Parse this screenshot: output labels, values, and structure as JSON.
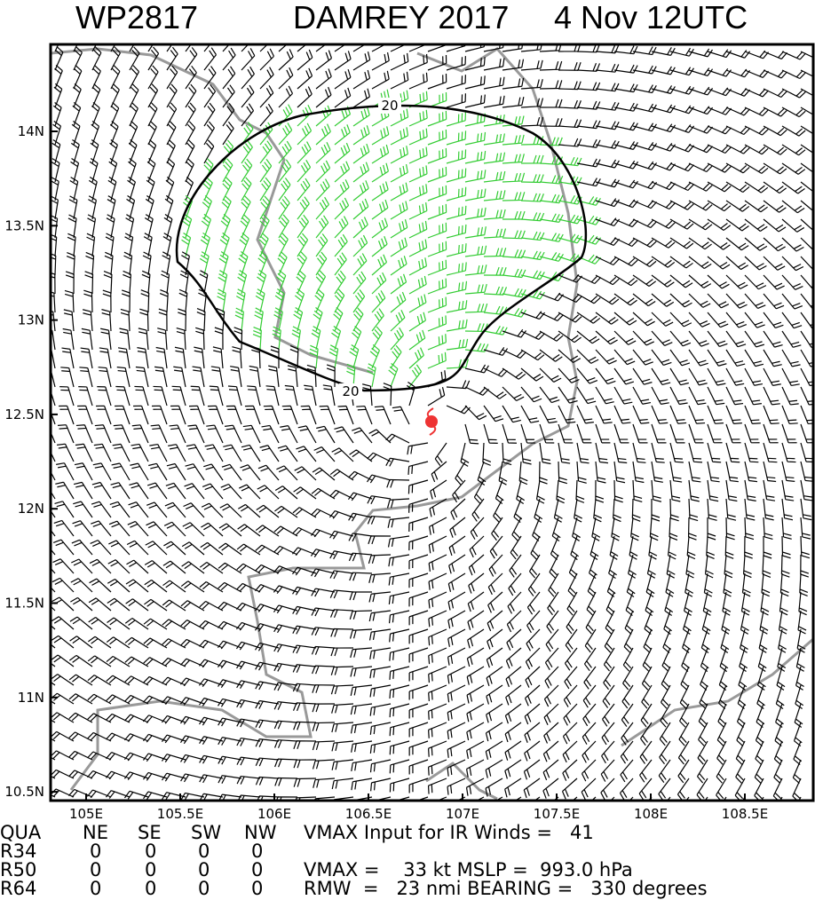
{
  "header": {
    "id": "WP2817",
    "storm": "DAMREY 2017",
    "time": "4 Nov 12UTC"
  },
  "map": {
    "x_labels": [
      "105E",
      "105.5E",
      "106E",
      "106.5E",
      "107E",
      "107.5E",
      "108E",
      "108.5E"
    ],
    "y_labels": [
      "14N",
      "13.5N",
      "13N",
      "12.5N",
      "12N",
      "11.5N",
      "11N",
      "10.5N"
    ],
    "contour_labels": [
      "20",
      "20"
    ]
  },
  "table": {
    "rows": [
      [
        "QUA",
        "NE",
        "SE",
        "SW",
        "NW",
        "VMAX Input for IR Winds =   41"
      ],
      [
        "R34",
        "0",
        "0",
        "0",
        "0"
      ],
      [
        "R50",
        "0",
        "0",
        "0",
        "0",
        "VMAX =    33 kt MSLP =  993.0 hPa"
      ],
      [
        "R64",
        "0",
        "0",
        "0",
        "0",
        "RMW  =   23 nmi BEARING =   330 degrees"
      ]
    ]
  }
}
